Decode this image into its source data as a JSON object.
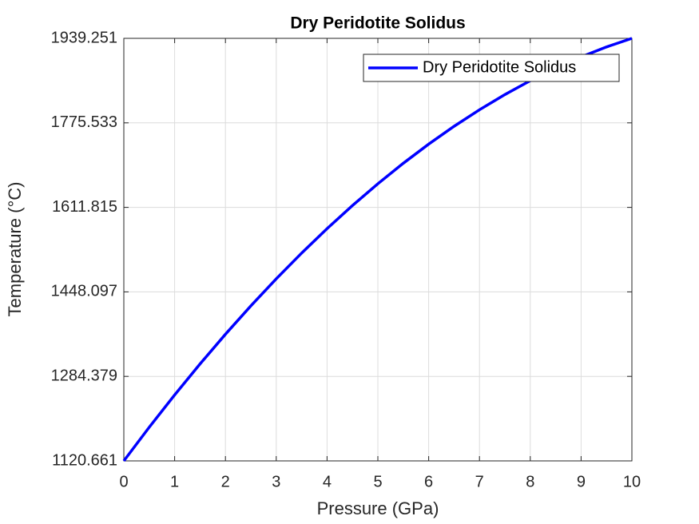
{
  "chart_data": {
    "type": "line",
    "title": "Dry Peridotite Solidus",
    "x_label": "Pressure (GPa)",
    "y_label": "Temperature (°C)",
    "x": [
      0,
      0.5,
      1,
      1.5,
      2,
      2.5,
      3,
      3.5,
      4,
      4.5,
      5,
      5.5,
      6,
      6.5,
      7,
      7.5,
      8,
      8.5,
      9,
      9.5,
      10
    ],
    "series": [
      {
        "name": "Dry Peridotite Solidus",
        "color": "#0000ff",
        "values": [
          1120.661,
          1185.8345,
          1248.456,
          1308.5255,
          1366.043,
          1421.0085,
          1473.422,
          1523.2835,
          1570.593,
          1615.3505,
          1657.556,
          1697.2095,
          1734.311,
          1768.8605,
          1800.858,
          1830.3035,
          1857.197,
          1881.5385,
          1903.328,
          1922.5655,
          1939.251
        ]
      }
    ],
    "xlim": [
      0,
      10
    ],
    "xticks": [
      0,
      1,
      2,
      3,
      4,
      5,
      6,
      7,
      8,
      9,
      10
    ],
    "ylim": [
      1120.661,
      1939.251
    ],
    "yticks": [
      1120.661,
      1284.379,
      1448.097,
      1611.815,
      1775.533,
      1939.251
    ],
    "grid": true,
    "legend": "top-right"
  }
}
